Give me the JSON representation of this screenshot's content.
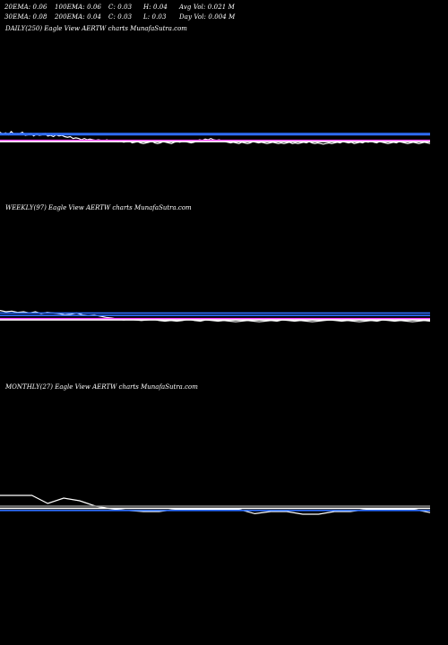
{
  "header": {
    "row1": [
      "20EMA: 0.06",
      "100EMA: 0.06",
      "C: 0.03",
      "H: 0.04",
      "Avg Vol: 0.021 M"
    ],
    "row2": [
      "30EMA: 0.08",
      "200EMA: 0.04",
      "C: 0.03",
      "L: 0.03",
      "Day Vol: 0.004  M"
    ]
  },
  "colors": {
    "background": "#000000",
    "price": "#ffffff",
    "ema_blue": "#2f6fff",
    "ema_magenta": "#ff44ff",
    "ema_grey": "#8a8a8a",
    "ema_white": "#ffffff"
  },
  "chart_data": [
    {
      "type": "line",
      "label": "DAILY(250) Eagle   View  AERTW charts MunafaSutra.com",
      "ylim": [
        0,
        0.1
      ],
      "series": [
        {
          "values": [
            0.062,
            0.059,
            0.061,
            0.058,
            0.063,
            0.059,
            0.058,
            0.06,
            0.062,
            0.057,
            0.058,
            0.06,
            0.056,
            0.059,
            0.057,
            0.058,
            0.06,
            0.056,
            0.057,
            0.055,
            0.058,
            0.056,
            0.057,
            0.055,
            0.054,
            0.055,
            0.052,
            0.053,
            0.052,
            0.05,
            0.052,
            0.05,
            0.051,
            0.05,
            0.049,
            0.05,
            0.049,
            0.048,
            0.05,
            0.048,
            0.049,
            0.048,
            0.047,
            0.048,
            0.046,
            0.047,
            0.048,
            0.045,
            0.046,
            0.047,
            0.045,
            0.044,
            0.045,
            0.046,
            0.048,
            0.045,
            0.044,
            0.045,
            0.047,
            0.046,
            0.045,
            0.044,
            0.046,
            0.047,
            0.046,
            0.048,
            0.047,
            0.046,
            0.045,
            0.046,
            0.048,
            0.05,
            0.049,
            0.051,
            0.05,
            0.052,
            0.05,
            0.049,
            0.05,
            0.048,
            0.047,
            0.046,
            0.045,
            0.046,
            0.045,
            0.044,
            0.046,
            0.045,
            0.044,
            0.045,
            0.047,
            0.046,
            0.045,
            0.046,
            0.045,
            0.044,
            0.045,
            0.046,
            0.045,
            0.044,
            0.045,
            0.044,
            0.045,
            0.046,
            0.044,
            0.045,
            0.044,
            0.045,
            0.046,
            0.045,
            0.047,
            0.045,
            0.044,
            0.045,
            0.044,
            0.043,
            0.044,
            0.045,
            0.044,
            0.045,
            0.046,
            0.045,
            0.047,
            0.046,
            0.045,
            0.046,
            0.044,
            0.045,
            0.046,
            0.045,
            0.047,
            0.046,
            0.048,
            0.046,
            0.045,
            0.047,
            0.046,
            0.045,
            0.044,
            0.045,
            0.046,
            0.045,
            0.047,
            0.046,
            0.045,
            0.044,
            0.045,
            0.046,
            0.045,
            0.044,
            0.045,
            0.046,
            0.045,
            0.044
          ]
        },
        {
          "values": [
            0.06,
            0.06,
            0.06,
            0.06,
            0.06,
            0.06,
            0.06,
            0.06,
            0.06,
            0.06,
            0.06,
            0.06,
            0.06,
            0.06,
            0.06,
            0.06,
            0.06,
            0.06,
            0.06,
            0.06,
            0.06,
            0.06,
            0.06,
            0.06,
            0.06,
            0.06,
            0.06,
            0.06,
            0.06,
            0.06,
            0.06,
            0.06,
            0.06,
            0.06,
            0.06,
            0.06,
            0.06,
            0.06,
            0.06,
            0.06
          ]
        },
        {
          "values": [
            0.058,
            0.058,
            0.058,
            0.058,
            0.058,
            0.058,
            0.058,
            0.058,
            0.058,
            0.058
          ]
        },
        {
          "values": [
            0.049,
            0.049,
            0.049,
            0.049,
            0.049,
            0.049,
            0.049,
            0.049,
            0.049,
            0.049
          ]
        },
        {
          "values": [
            0.047,
            0.047,
            0.047,
            0.047,
            0.047,
            0.047,
            0.047,
            0.047,
            0.047,
            0.047
          ]
        }
      ]
    },
    {
      "type": "line",
      "label": "WEEKLY(97) Eagle   View  AERTW charts MunafaSutra.com",
      "ylim": [
        0,
        0.1
      ],
      "series": [
        {
          "values": [
            0.062,
            0.06,
            0.061,
            0.059,
            0.06,
            0.058,
            0.06,
            0.057,
            0.059,
            0.058,
            0.057,
            0.055,
            0.056,
            0.058,
            0.055,
            0.054,
            0.055,
            0.053,
            0.051,
            0.05,
            0.048,
            0.047,
            0.048,
            0.047,
            0.046,
            0.047,
            0.048,
            0.046,
            0.045,
            0.046,
            0.045,
            0.046,
            0.048,
            0.046,
            0.045,
            0.047,
            0.046,
            0.045,
            0.046,
            0.045,
            0.044,
            0.045,
            0.046,
            0.045,
            0.044,
            0.045,
            0.046,
            0.045,
            0.047,
            0.046,
            0.045,
            0.046,
            0.045,
            0.044,
            0.045,
            0.046,
            0.047,
            0.046,
            0.045,
            0.046,
            0.045,
            0.044,
            0.045,
            0.046,
            0.045,
            0.047,
            0.046,
            0.045,
            0.046,
            0.045,
            0.044,
            0.045,
            0.046,
            0.045
          ]
        },
        {
          "values": [
            0.058,
            0.058,
            0.058,
            0.058,
            0.058,
            0.058,
            0.058,
            0.058,
            0.058,
            0.058
          ]
        },
        {
          "values": [
            0.054,
            0.054,
            0.054,
            0.054,
            0.054,
            0.054,
            0.054,
            0.054,
            0.054,
            0.054
          ]
        },
        {
          "values": [
            0.049,
            0.049,
            0.049,
            0.049,
            0.049,
            0.049,
            0.049,
            0.049,
            0.049,
            0.049
          ]
        },
        {
          "values": [
            0.047,
            0.047,
            0.047,
            0.047,
            0.047,
            0.047,
            0.047,
            0.047,
            0.047,
            0.047
          ]
        }
      ]
    },
    {
      "type": "line",
      "label": "MONTHLY(27) Eagle   View  AERTW charts MunafaSutra.com",
      "ylim": [
        0,
        0.1
      ],
      "series": [
        {
          "values": [
            0.07,
            0.07,
            0.07,
            0.055,
            0.065,
            0.06,
            0.05,
            0.045,
            0.042,
            0.04,
            0.04,
            0.044,
            0.044,
            0.044,
            0.044,
            0.044,
            0.036,
            0.04,
            0.04,
            0.035,
            0.035,
            0.04,
            0.04,
            0.044,
            0.044,
            0.044,
            0.044,
            0.038
          ]
        },
        {
          "values": [
            0.05,
            0.05,
            0.05,
            0.05,
            0.05,
            0.05,
            0.05,
            0.05,
            0.05,
            0.05
          ]
        },
        {
          "values": [
            0.046,
            0.046,
            0.046,
            0.046,
            0.046,
            0.046,
            0.046,
            0.046,
            0.046,
            0.046
          ]
        },
        {
          "values": [
            0.042,
            0.042,
            0.042,
            0.042,
            0.042,
            0.042,
            0.042,
            0.042,
            0.042,
            0.042
          ]
        }
      ]
    }
  ]
}
